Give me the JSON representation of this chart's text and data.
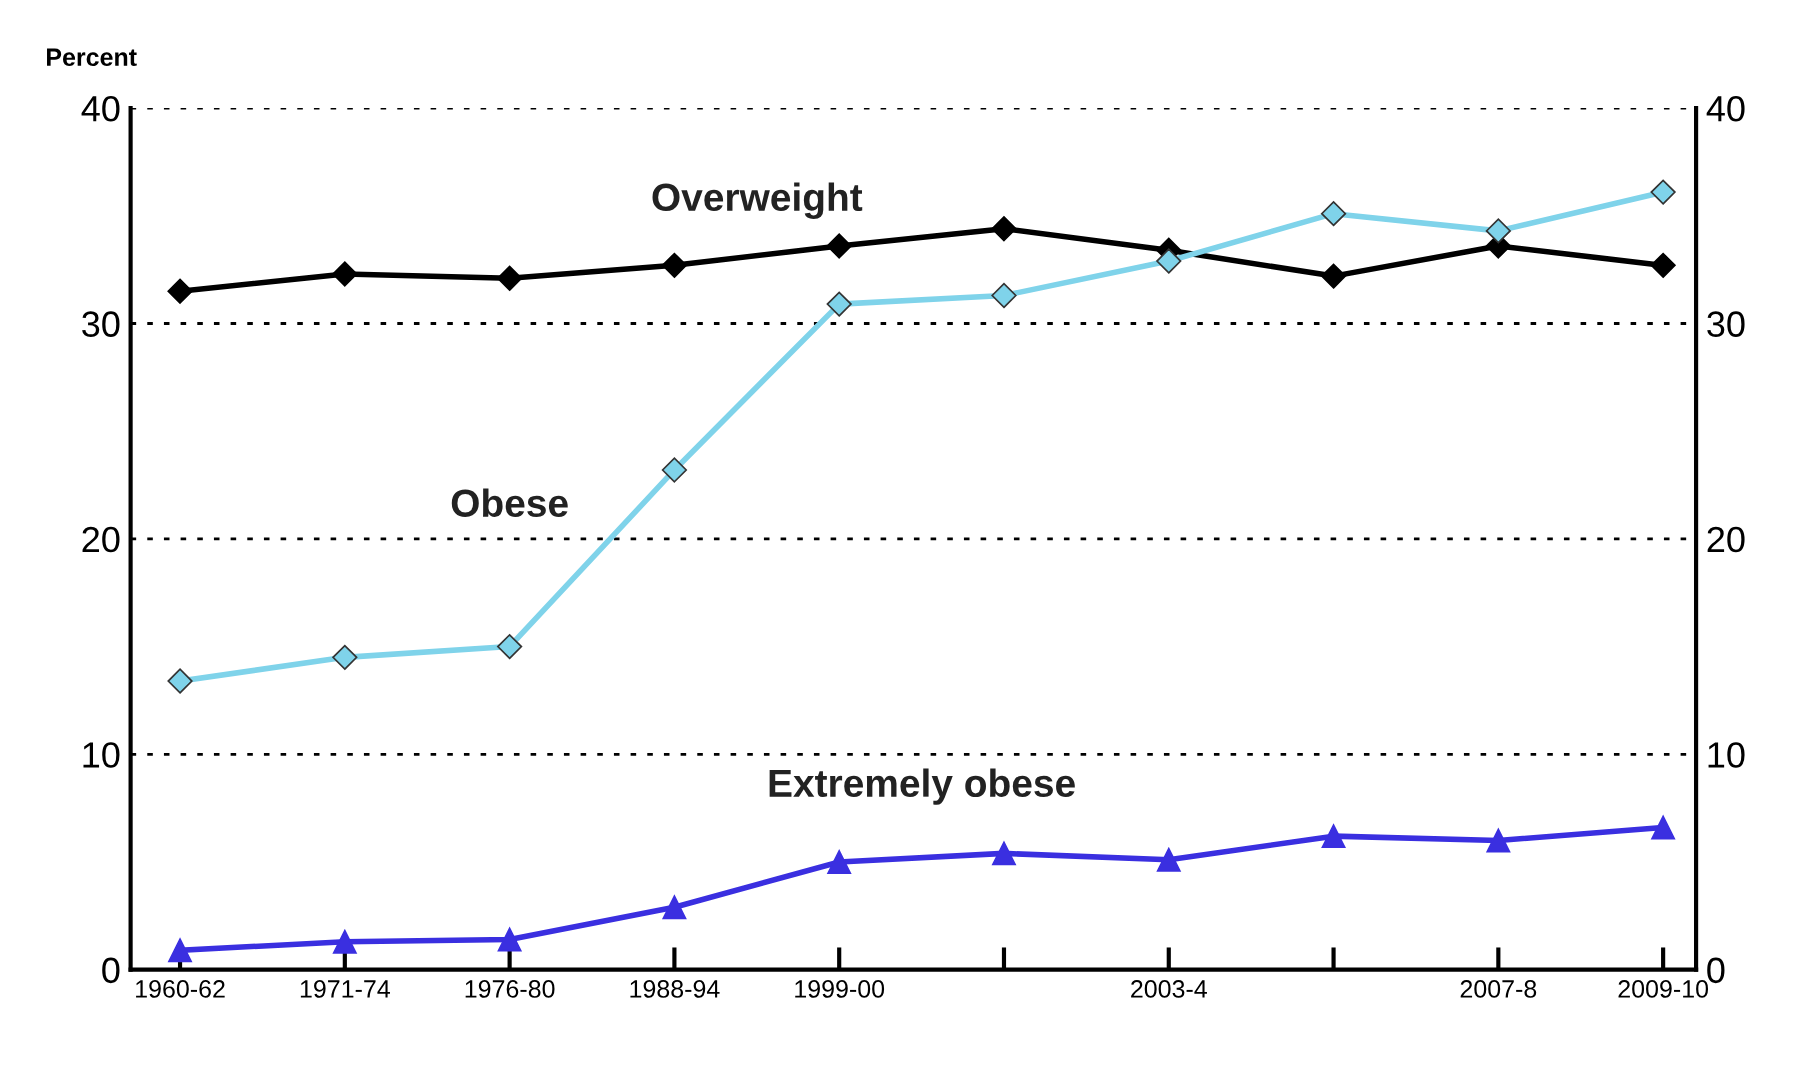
{
  "chart_data": {
    "type": "line",
    "ylabel": "Percent",
    "categories": [
      "1960-62",
      "1971-74",
      "1976-80",
      "1988-94",
      "1999-00",
      null,
      "2003-4",
      null,
      "2007-8",
      "2009-10"
    ],
    "ylim": [
      0,
      40
    ],
    "yticks": [
      0,
      10,
      20,
      30,
      40
    ],
    "y2lim": [
      0,
      40
    ],
    "y2ticks": [
      0,
      10,
      20,
      30,
      40
    ],
    "grid": "y",
    "series": [
      {
        "name": "Overweight",
        "color": "#000000",
        "marker": "diamond",
        "values": [
          31.5,
          32.3,
          32.1,
          32.7,
          33.6,
          34.4,
          33.4,
          32.2,
          33.6,
          32.7
        ]
      },
      {
        "name": "Obese",
        "color": "#7fd3ea",
        "marker": "diamond",
        "values": [
          13.4,
          14.5,
          15.0,
          23.2,
          30.9,
          31.3,
          32.9,
          35.1,
          34.3,
          36.1
        ]
      },
      {
        "name": "Extremely obese",
        "color": "#3a2fe0",
        "marker": "triangle",
        "values": [
          0.9,
          1.3,
          1.4,
          2.9,
          5.0,
          5.4,
          5.1,
          6.2,
          6.0,
          6.6
        ]
      }
    ]
  }
}
